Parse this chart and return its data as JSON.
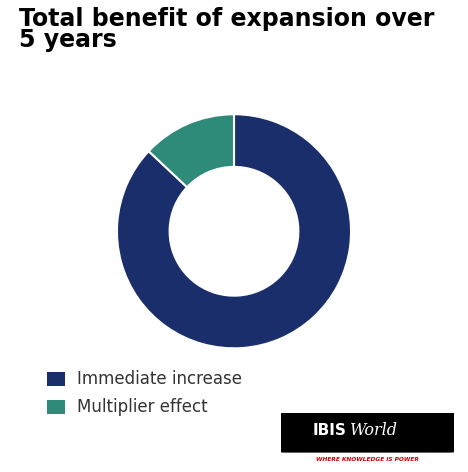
{
  "title_line1": "Total benefit of expansion over",
  "title_line2": "5 years",
  "title_fontsize": 17,
  "title_fontweight": "bold",
  "slices": [
    87,
    13
  ],
  "colors": [
    "#1a2e6c",
    "#2e8b7a"
  ],
  "labels": [
    "Immediate increase",
    "Multiplier effect"
  ],
  "donut_width": 0.45,
  "startangle": 90,
  "background_color": "#ffffff",
  "legend_fontsize": 12,
  "ibis_bold": "IBIS",
  "ibis_italic": "World",
  "ibis_tagline": "WHERE KNOWLEDGE IS POWER"
}
